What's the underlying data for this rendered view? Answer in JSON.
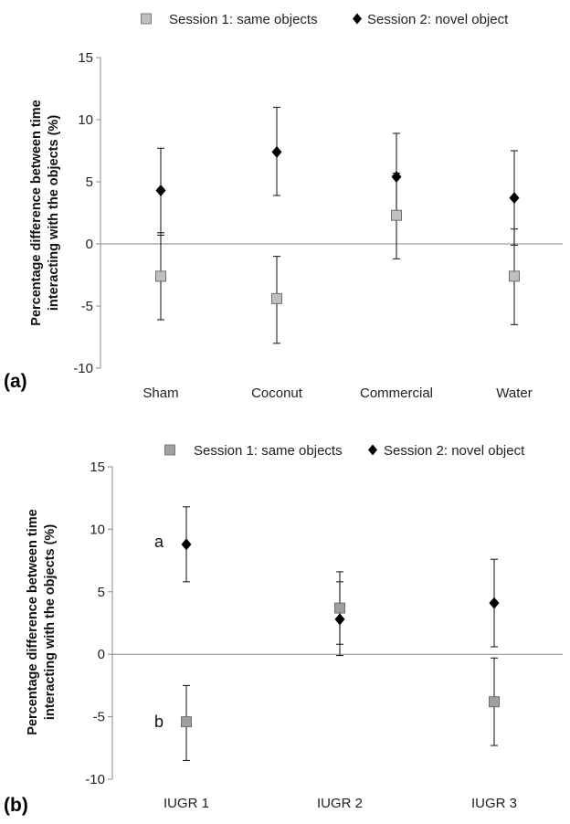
{
  "chart_data": [
    {
      "type": "scatter",
      "panel_label": "(a)",
      "ylabel_lines": [
        "Percentage difference between time",
        "interacting with the objects (%)"
      ],
      "categories": [
        "Sham",
        "Coconut",
        "Commercial",
        "Water"
      ],
      "ylim": [
        -10,
        15
      ],
      "yticks": [
        "15",
        "10",
        "5",
        "0",
        "-5",
        "-10"
      ],
      "legend": [
        "Session 1: same objects",
        "Session 2: novel object"
      ],
      "legend_position": "top",
      "series": [
        {
          "name": "Session 1: same objects",
          "marker": "square",
          "color": "#c0c0c0",
          "values": [
            -2.6,
            -4.4,
            2.3,
            -2.6
          ],
          "err_low": [
            -6.1,
            -8.0,
            -1.2,
            -6.5
          ],
          "err_high": [
            0.9,
            -1.0,
            5.7,
            1.2
          ]
        },
        {
          "name": "Session 2: novel object",
          "marker": "diamond",
          "color": "#000000",
          "values": [
            4.3,
            7.4,
            5.4,
            3.7
          ],
          "err_low": [
            0.7,
            3.9,
            2.0,
            -0.1
          ],
          "err_high": [
            7.7,
            11.0,
            8.9,
            7.5
          ]
        }
      ],
      "annotations": []
    },
    {
      "type": "scatter",
      "panel_label": "(b)",
      "ylabel_lines": [
        "Percentage difference between time",
        "interacting with the objects (%)"
      ],
      "categories": [
        "IUGR 1",
        "IUGR 2",
        "IUGR 3"
      ],
      "ylim": [
        -10,
        15
      ],
      "yticks": [
        "15",
        "10",
        "5",
        "0",
        "-5",
        "-10"
      ],
      "legend": [
        "Session 1: same objects",
        "Session 2: novel object"
      ],
      "legend_position": "top",
      "series": [
        {
          "name": "Session 1: same objects",
          "marker": "square",
          "color": "#a0a0a0",
          "values": [
            -5.4,
            3.7,
            -3.8
          ],
          "err_low": [
            -8.5,
            0.8,
            -7.3
          ],
          "err_high": [
            -2.5,
            6.6,
            -0.3
          ]
        },
        {
          "name": "Session 2: novel object",
          "marker": "diamond",
          "color": "#000000",
          "values": [
            8.8,
            2.8,
            4.1
          ],
          "err_low": [
            5.8,
            -0.1,
            0.6
          ],
          "err_high": [
            11.8,
            5.8,
            7.6
          ]
        }
      ],
      "annotations": [
        {
          "text": "a",
          "category": 0,
          "value": 9.0
        },
        {
          "text": "b",
          "category": 0,
          "value": -5.4
        }
      ]
    }
  ]
}
